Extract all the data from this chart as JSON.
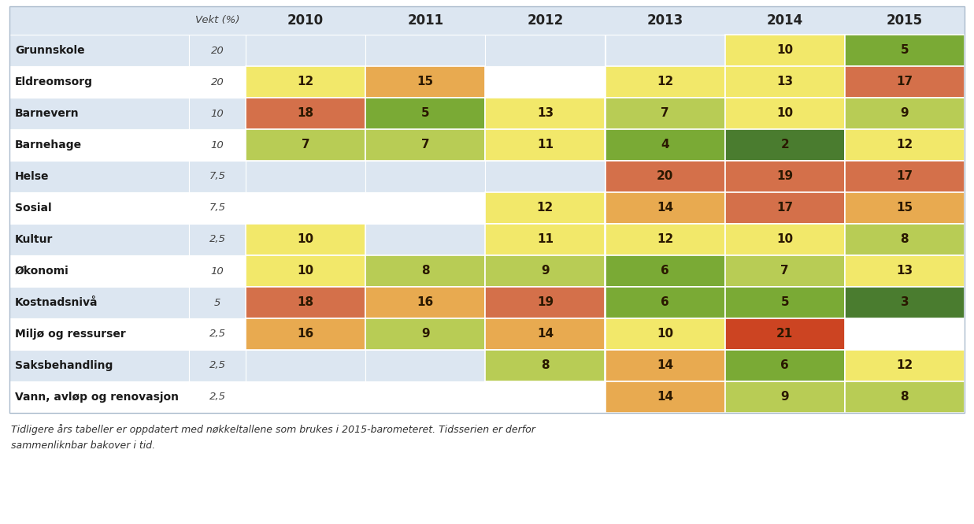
{
  "rows": [
    {
      "label": "Grunnskole",
      "weight": "20",
      "values": {
        "2010": null,
        "2011": null,
        "2012": null,
        "2013": null,
        "2014": 10,
        "2015": 5
      }
    },
    {
      "label": "Eldreomsorg",
      "weight": "20",
      "values": {
        "2010": 12,
        "2011": 15,
        "2012": null,
        "2013": 12,
        "2014": 13,
        "2015": 17
      }
    },
    {
      "label": "Barnevern",
      "weight": "10",
      "values": {
        "2010": 18,
        "2011": 5,
        "2012": 13,
        "2013": 7,
        "2014": 10,
        "2015": 9
      }
    },
    {
      "label": "Barnehage",
      "weight": "10",
      "values": {
        "2010": 7,
        "2011": 7,
        "2012": 11,
        "2013": 4,
        "2014": 2,
        "2015": 12
      }
    },
    {
      "label": "Helse",
      "weight": "7,5",
      "values": {
        "2010": null,
        "2011": null,
        "2012": null,
        "2013": 20,
        "2014": 19,
        "2015": 17
      }
    },
    {
      "label": "Sosial",
      "weight": "7,5",
      "values": {
        "2010": null,
        "2011": null,
        "2012": 12,
        "2013": 14,
        "2014": 17,
        "2015": 15
      }
    },
    {
      "label": "Kultur",
      "weight": "2,5",
      "values": {
        "2010": 10,
        "2011": null,
        "2012": 11,
        "2013": 12,
        "2014": 10,
        "2015": 8
      }
    },
    {
      "label": "Økonomi",
      "weight": "10",
      "values": {
        "2010": 10,
        "2011": 8,
        "2012": 9,
        "2013": 6,
        "2014": 7,
        "2015": 13
      }
    },
    {
      "label": "Kostnadsnivå",
      "weight": "5",
      "values": {
        "2010": 18,
        "2011": 16,
        "2012": 19,
        "2013": 6,
        "2014": 5,
        "2015": 3
      }
    },
    {
      "label": "Miljø og ressurser",
      "weight": "2,5",
      "values": {
        "2010": 16,
        "2011": 9,
        "2012": 14,
        "2013": 10,
        "2014": 21,
        "2015": null
      }
    },
    {
      "label": "Saksbehandling",
      "weight": "2,5",
      "values": {
        "2010": null,
        "2011": null,
        "2012": 8,
        "2013": 14,
        "2014": 6,
        "2015": 12
      }
    },
    {
      "label": "Vann, avløp og renovasjon",
      "weight": "2,5",
      "values": {
        "2010": null,
        "2011": null,
        "2012": null,
        "2013": 14,
        "2014": 9,
        "2015": 8
      }
    }
  ],
  "years": [
    "2010",
    "2011",
    "2012",
    "2013",
    "2014",
    "2015"
  ],
  "color_thresholds": [
    {
      "max": 3,
      "color": "#4a7c2f"
    },
    {
      "max": 6,
      "color": "#7aaa35"
    },
    {
      "max": 9,
      "color": "#b8cc55"
    },
    {
      "max": 13,
      "color": "#f2e86a"
    },
    {
      "max": 16,
      "color": "#e8aa50"
    },
    {
      "max": 20,
      "color": "#d4704a"
    },
    {
      "max": 99,
      "color": "#cc4422"
    }
  ],
  "bg_color_odd": "#dce6f1",
  "bg_color_even": "#ffffff",
  "header_bg": "#dce6f1",
  "table_border_color": "#aaaaaa",
  "footnote": "Tidligere års tabeller er oppdatert med nøkkeltallene som brukes i 2015-barometeret. Tidsserien er derfor\nsammenliknbar bakover i tid."
}
